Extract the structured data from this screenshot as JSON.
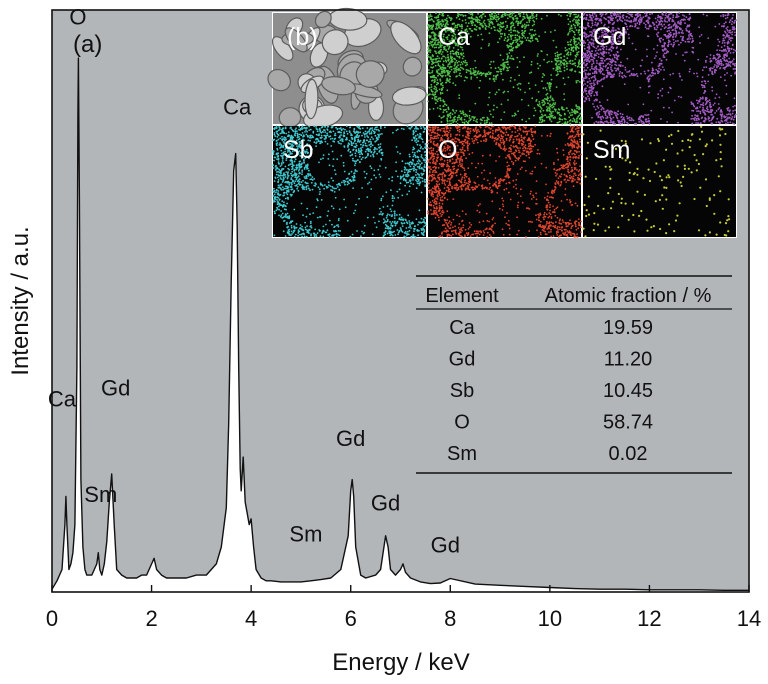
{
  "chart_data": {
    "type": "line",
    "panel_label": "(a)",
    "xlabel": "Energy / keV",
    "ylabel": "Intensity / a.u.",
    "xlim": [
      0,
      14
    ],
    "ylim": [
      0,
      100
    ],
    "xticks": [
      0,
      2,
      4,
      6,
      8,
      10,
      12,
      14
    ],
    "yticks_shown": false,
    "grid": false,
    "colors": {
      "plot_bg": "#b2b6b9",
      "line": "#111111",
      "fill": "#ffffff"
    },
    "series": [
      {
        "x": [
          0.0,
          0.1,
          0.2,
          0.26,
          0.28,
          0.3,
          0.34,
          0.38,
          0.42,
          0.46,
          0.5,
          0.52,
          0.53,
          0.55,
          0.58,
          0.62,
          0.66,
          0.7,
          0.75,
          0.8,
          0.85,
          0.9,
          0.93,
          0.96,
          1.0,
          1.05,
          1.1,
          1.15,
          1.2,
          1.25,
          1.3,
          1.4,
          1.5,
          1.6,
          1.7,
          1.8,
          1.9,
          2.0,
          2.05,
          2.1,
          2.2,
          2.3,
          2.5,
          2.7,
          2.9,
          3.1,
          3.2,
          3.3,
          3.4,
          3.5,
          3.55,
          3.6,
          3.65,
          3.69,
          3.72,
          3.75,
          3.78,
          3.8,
          3.84,
          3.88,
          3.92,
          3.96,
          4.0,
          4.05,
          4.1,
          4.2,
          4.3,
          4.4,
          4.6,
          4.8,
          5.0,
          5.2,
          5.4,
          5.6,
          5.8,
          5.95,
          6.0,
          6.03,
          6.06,
          6.1,
          6.2,
          6.3,
          6.5,
          6.6,
          6.65,
          6.7,
          6.75,
          6.8,
          6.9,
          7.0,
          7.05,
          7.1,
          7.2,
          7.4,
          7.6,
          7.8,
          8.0,
          8.5,
          9.0,
          9.5,
          10.0,
          10.5,
          11.0,
          11.5,
          12.0,
          12.5,
          13.0,
          13.5,
          14.0
        ],
        "y": [
          0.5,
          2,
          4,
          12,
          17,
          12,
          4,
          5,
          7,
          12,
          40,
          85,
          95,
          70,
          20,
          8,
          4,
          3,
          3,
          3,
          4,
          5,
          7,
          4,
          3,
          5,
          9,
          16,
          21,
          12,
          4,
          3,
          2.5,
          2.5,
          2.5,
          3,
          3,
          5,
          6,
          4,
          3,
          2.5,
          2.5,
          2.5,
          3,
          3,
          4,
          5,
          8,
          15,
          30,
          55,
          75,
          78,
          65,
          40,
          22,
          18,
          24,
          16,
          14,
          12,
          13,
          8,
          4,
          2.5,
          2,
          2,
          1.8,
          1.8,
          1.8,
          2,
          2.2,
          2.5,
          4,
          10,
          18,
          20,
          17,
          8,
          3,
          2.5,
          3,
          4,
          7,
          10,
          8,
          4,
          3,
          4,
          5,
          3.5,
          2.5,
          1.8,
          1.5,
          1.6,
          2.4,
          1.4,
          1.2,
          1.0,
          0.8,
          0.6,
          0.5,
          0.5,
          0.4,
          0.4,
          0.4,
          0.3,
          0.3
        ]
      }
    ],
    "peak_labels": [
      {
        "text": "O",
        "x": 0.52,
        "y": 101
      },
      {
        "text": "Ca",
        "x": 0.2,
        "y": 33
      },
      {
        "text": "Gd",
        "x": 1.28,
        "y": 35
      },
      {
        "text": "Sm",
        "x": 0.98,
        "y": 16
      },
      {
        "text": "Ca",
        "x": 3.72,
        "y": 85
      },
      {
        "text": "Sm",
        "x": 5.1,
        "y": 9
      },
      {
        "text": "Gd",
        "x": 6.0,
        "y": 26
      },
      {
        "text": "Gd",
        "x": 6.7,
        "y": 14.5
      },
      {
        "text": "Gd",
        "x": 7.9,
        "y": 7
      }
    ],
    "inset_map": {
      "label": "(b)",
      "tiles": [
        {
          "label": "",
          "kind": "sem",
          "color": "#c9c9c9"
        },
        {
          "label": "Ca",
          "kind": "map",
          "color": "#4fbf4a"
        },
        {
          "label": "Gd",
          "kind": "map",
          "color": "#a25bc4"
        },
        {
          "label": "Sb",
          "kind": "map",
          "color": "#3ec9cf"
        },
        {
          "label": "O",
          "kind": "map",
          "color": "#e0442f"
        },
        {
          "label": "Sm",
          "kind": "sparse",
          "color": "#c4c93a"
        }
      ]
    },
    "table": {
      "headers": [
        "Element",
        "Atomic fraction / %"
      ],
      "rows": [
        [
          "Ca",
          "19.59"
        ],
        [
          "Gd",
          "11.20"
        ],
        [
          "Sb",
          "10.45"
        ],
        [
          "O",
          "58.74"
        ],
        [
          "Sm",
          "0.02"
        ]
      ]
    }
  }
}
